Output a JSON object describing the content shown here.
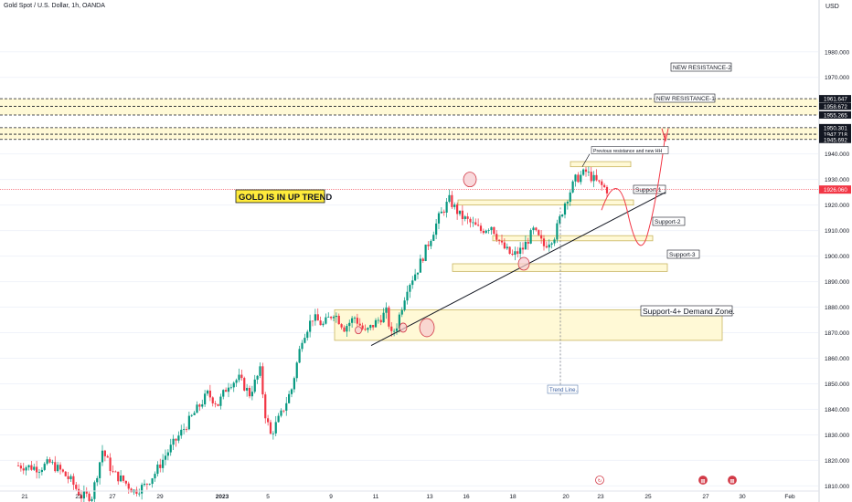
{
  "header": {
    "symbol_title": "Gold Spot / U.S. Dollar, 1h, OANDA",
    "currency": "USD"
  },
  "colors": {
    "up": "#089981",
    "down": "#f23645",
    "zone_fill": "#fff9d6",
    "zone_border": "#c9b560",
    "grid": "#f0f3fa",
    "price_line": "#f23645",
    "forecast": "#f23645",
    "trend": "#131722",
    "title_bg": "#ffeb3b",
    "circle_fill": "#f6c9cd",
    "circle_stroke": "#d23a47"
  },
  "chart_data": {
    "type": "candlestick",
    "symbol": "XAUUSD",
    "timeframe": "1h",
    "ylim": [
      1808,
      1996
    ],
    "y_ticks": [
      1810,
      1820,
      1830,
      1840,
      1850,
      1860,
      1870,
      1880,
      1890,
      1900,
      1910,
      1920,
      1930,
      1940,
      1950,
      1960,
      1970,
      1980
    ],
    "y_tick_labels": [
      "1810.000",
      "1820.000",
      "1830.000",
      "1840.000",
      "1850.000",
      "1860.000",
      "1870.000",
      "1880.000",
      "1890.000",
      "1900.000",
      "1910.000",
      "1920.000",
      "1930.000",
      "1940.000",
      "1950.000",
      "1960.000",
      "1970.000",
      "1980.000"
    ],
    "x_labels": [
      "21",
      "23",
      "27",
      "29",
      "2023",
      "5",
      "9",
      "11",
      "13",
      "16",
      "18",
      "20",
      "23",
      "25",
      "27",
      "30",
      "Feb"
    ],
    "x_label_bold": [
      false,
      false,
      false,
      false,
      true,
      false,
      false,
      false,
      false,
      false,
      false,
      false,
      false,
      false,
      false,
      false,
      false
    ],
    "current_price": 1926.06,
    "current_price_label": "1926.060",
    "price_path": [
      [
        0,
        1818
      ],
      [
        4,
        1817
      ],
      [
        6,
        1819
      ],
      [
        8,
        1816
      ],
      [
        10,
        1812
      ],
      [
        12,
        1806
      ],
      [
        14,
        1806
      ],
      [
        16,
        1824
      ],
      [
        18,
        1815
      ],
      [
        20,
        1812
      ],
      [
        22,
        1808
      ],
      [
        24,
        1810
      ],
      [
        26,
        1815
      ],
      [
        28,
        1822
      ],
      [
        30,
        1828
      ],
      [
        32,
        1834
      ],
      [
        34,
        1840
      ],
      [
        36,
        1846
      ],
      [
        38,
        1842
      ],
      [
        40,
        1850
      ],
      [
        42,
        1852
      ],
      [
        44,
        1846
      ],
      [
        46,
        1855
      ],
      [
        47,
        1838
      ],
      [
        48,
        1830
      ],
      [
        50,
        1838
      ],
      [
        52,
        1848
      ],
      [
        54,
        1868
      ],
      [
        56,
        1876
      ],
      [
        58,
        1873
      ],
      [
        60,
        1878
      ],
      [
        62,
        1872
      ],
      [
        64,
        1876
      ],
      [
        66,
        1870
      ],
      [
        68,
        1874
      ],
      [
        70,
        1878
      ],
      [
        71,
        1869
      ],
      [
        72,
        1873
      ],
      [
        74,
        1888
      ],
      [
        76,
        1895
      ],
      [
        78,
        1905
      ],
      [
        80,
        1915
      ],
      [
        82,
        1922
      ],
      [
        84,
        1916
      ],
      [
        86,
        1913
      ],
      [
        88,
        1910
      ],
      [
        90,
        1912
      ],
      [
        92,
        1904
      ],
      [
        94,
        1900
      ],
      [
        96,
        1903
      ],
      [
        98,
        1910
      ],
      [
        100,
        1904
      ],
      [
        102,
        1908
      ],
      [
        104,
        1921
      ],
      [
        106,
        1930
      ],
      [
        108,
        1933
      ],
      [
        110,
        1929
      ],
      [
        112,
        1926
      ]
    ],
    "levels": [
      {
        "value": 1961.647,
        "label": "1961.647"
      },
      {
        "value": 1958.672,
        "label": "1958.672"
      },
      {
        "value": 1955.265,
        "label": "1955.265"
      },
      {
        "value": 1950.301,
        "label": "1950.301"
      },
      {
        "value": 1947.718,
        "label": "1947.718"
      },
      {
        "value": 1945.692,
        "label": "1945.692"
      }
    ],
    "zones": [
      {
        "name": "new-resistance-2-zone",
        "from": 1955.265,
        "to": 1961.647,
        "label": "NEW RESISTANCE-2",
        "label_x": 736,
        "label_y": 75
      },
      {
        "name": "new-resistance-1-zone",
        "from": 1945.692,
        "to": 1950.301,
        "label": "NEW RESISTANCE-1",
        "label_x": 718,
        "label_y": 109
      }
    ],
    "boxes": [
      {
        "name": "prev-resistance-box",
        "x1": 624,
        "x2": 690,
        "top": 1937,
        "bottom": 1935,
        "label": "",
        "label_x": 0,
        "label_y": 0
      },
      {
        "name": "support-1-box",
        "x1": 501,
        "x2": 693,
        "top": 1922,
        "bottom": 1920,
        "label": "Support-1",
        "label_x": 695,
        "label_y": 209
      },
      {
        "name": "support-2-box",
        "x1": 539,
        "x2": 714,
        "top": 1908,
        "bottom": 1906,
        "label": "Support-2",
        "label_x": 716,
        "label_y": 244
      },
      {
        "name": "support-3-box",
        "x1": 495,
        "x2": 730,
        "top": 1897,
        "bottom": 1894,
        "label": "Support-3",
        "label_x": 732,
        "label_y": 280
      },
      {
        "name": "support-4-box",
        "x1": 366,
        "x2": 790,
        "top": 1879,
        "bottom": 1867,
        "label": "Support-4+ Demand Zone.",
        "label_x": 703,
        "label_y": 343
      }
    ],
    "annotations": {
      "title_label": "GOLD IS IN UP TREND",
      "prev_resistance_label": "Previous resistance and new HH",
      "trend_label": "Trend Line..",
      "forecast_marker_label": "↻"
    }
  }
}
